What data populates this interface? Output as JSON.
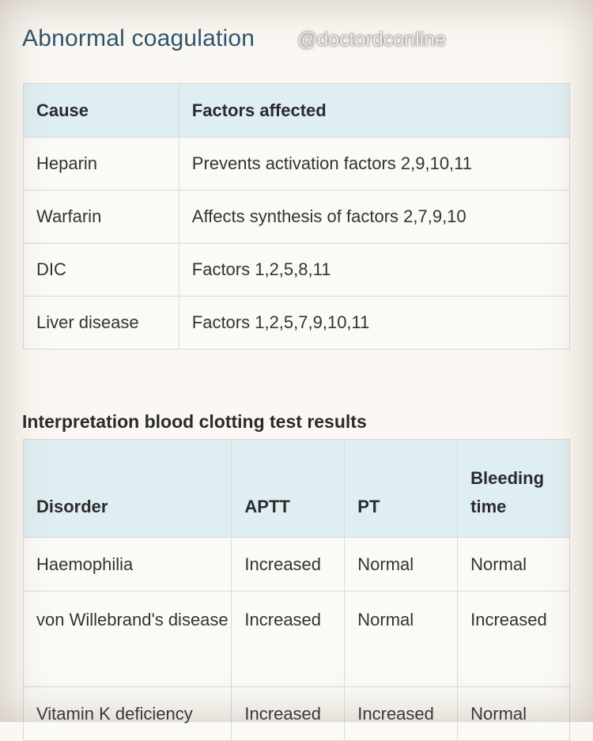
{
  "title": "Abnormal coagulation",
  "watermark": "@doctordconline",
  "table1": {
    "headers": [
      "Cause",
      "Factors affected"
    ],
    "rows": [
      [
        "Heparin",
        "Prevents activation factors 2,9,10,11"
      ],
      [
        "Warfarin",
        "Affects synthesis of factors 2,7,9,10"
      ],
      [
        "DIC",
        "Factors 1,2,5,8,11"
      ],
      [
        "Liver disease",
        "Factors 1,2,5,7,9,10,11"
      ]
    ]
  },
  "subtitle": "Interpretation blood clotting test results",
  "table2": {
    "headers": [
      "Disorder",
      "APTT",
      "PT",
      "Bleeding time"
    ],
    "rows": [
      [
        "Haemophilia",
        "Increased",
        "Normal",
        "Normal"
      ],
      [
        "von Willebrand's disease",
        "Increased",
        "Normal",
        "Increased"
      ],
      [
        "Vitamin K deficiency",
        "Increased",
        "Increased",
        "Normal"
      ]
    ]
  },
  "colors": {
    "title": "#2e5670",
    "header_bg": "#dfeef3",
    "cell_bg": "#fbfaf6",
    "border": "#d9d9d9"
  }
}
